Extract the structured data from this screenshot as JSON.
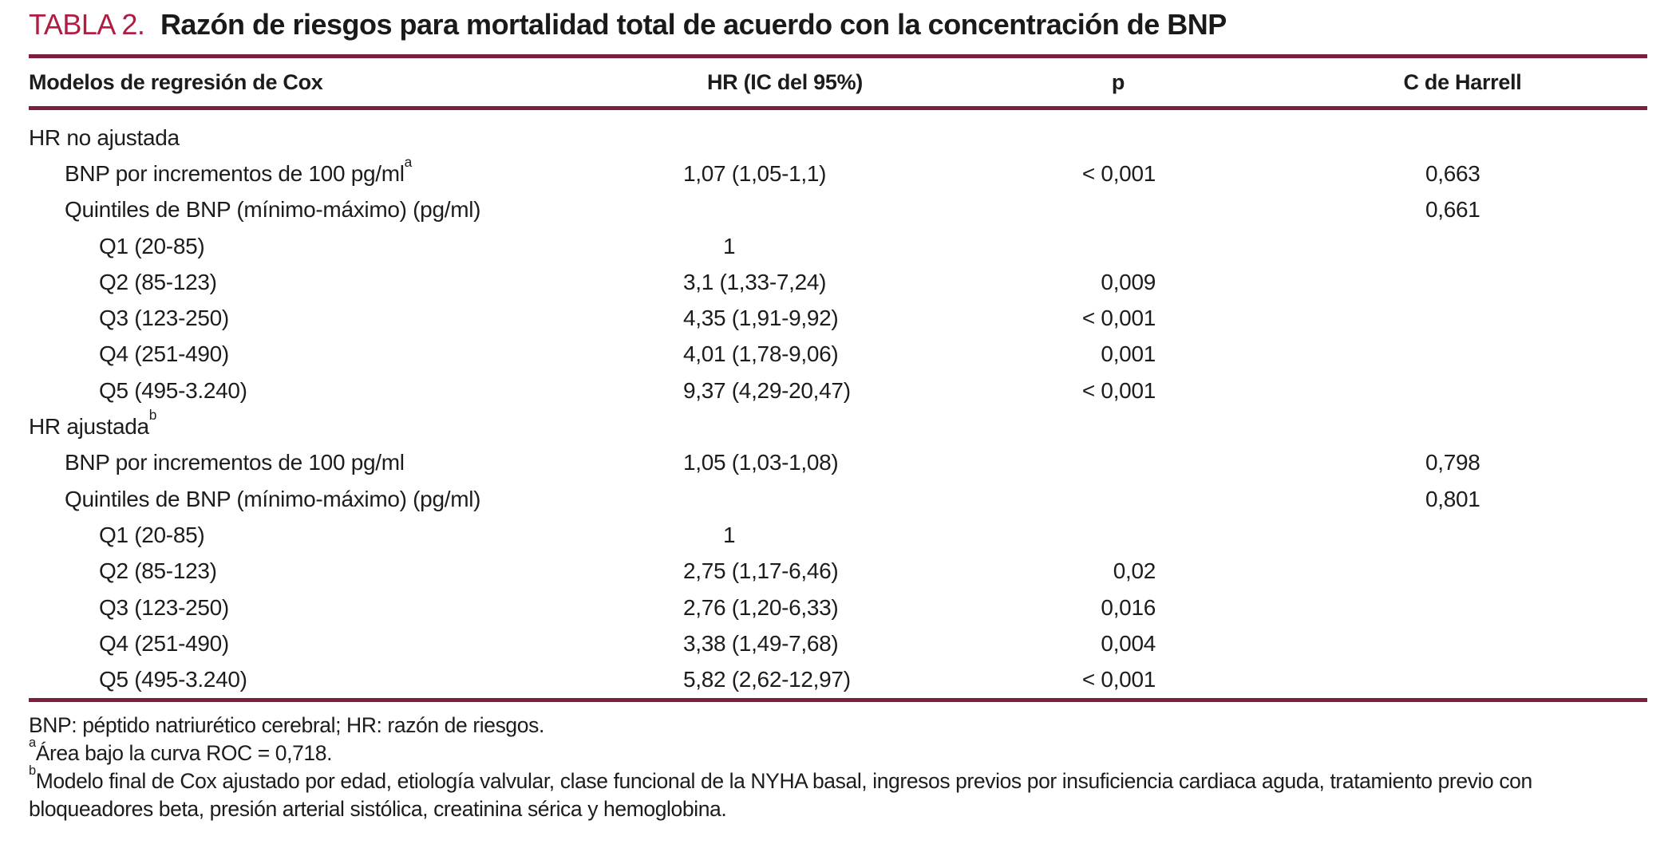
{
  "title": {
    "label": "TABLA 2.",
    "text": "Razón de riesgos para mortalidad total de acuerdo con la concentración de BNP"
  },
  "columns": {
    "model": "Modelos de regresión de Cox",
    "hr": "HR (IC del 95%)",
    "p": "p",
    "c": "C de Harrell"
  },
  "rows": [
    {
      "label": "HR no ajustada"
    },
    {
      "label": "BNP por incrementos de 100 pg/ml",
      "sup": "a",
      "hr": "1,07 (1,05-1,1)",
      "p": "< 0,001",
      "c": "0,663"
    },
    {
      "label": "Quintiles de BNP (mínimo-máximo) (pg/ml)",
      "c": "0,661"
    },
    {
      "label": "Q1 (20-85)",
      "hr": "1"
    },
    {
      "label": "Q2 (85-123)",
      "hr": "3,1 (1,33-7,24)",
      "p": "0,009"
    },
    {
      "label": "Q3 (123-250)",
      "hr": "4,35 (1,91-9,92)",
      "p": "< 0,001"
    },
    {
      "label": "Q4 (251-490)",
      "hr": "4,01 (1,78-9,06)",
      "p": "0,001"
    },
    {
      "label": "Q5 (495-3.240)",
      "hr": "9,37 (4,29-20,47)",
      "p": "< 0,001"
    },
    {
      "label": "HR ajustada",
      "sup": "b"
    },
    {
      "label": "BNP por incrementos de 100 pg/ml",
      "hr": "1,05 (1,03-1,08)",
      "c": "0,798"
    },
    {
      "label": "Quintiles de BNP (mínimo-máximo) (pg/ml)",
      "c": "0,801"
    },
    {
      "label": "Q1 (20-85)",
      "hr": "1"
    },
    {
      "label": "Q2 (85-123)",
      "hr": "2,75 (1,17-6,46)",
      "p": "0,02"
    },
    {
      "label": "Q3 (123-250)",
      "hr": "2,76 (1,20-6,33)",
      "p": "0,016"
    },
    {
      "label": "Q4 (251-490)",
      "hr": "3,38 (1,49-7,68)",
      "p": "0,004"
    },
    {
      "label": "Q5 (495-3.240)",
      "hr": "5,82 (2,62-12,97)",
      "p": "< 0,001"
    }
  ],
  "footnotes": {
    "abbr": "BNP: péptido natriurético cerebral; HR: razón de riesgos.",
    "a_sup": "a",
    "a_text": "Área bajo la curva ROC = 0,718.",
    "b_sup": "b",
    "b_text": "Modelo final de Cox ajustado por edad, etiología valvular, clase funcional de la NYHA basal, ingresos previos por insuficiencia cardiaca aguda, tratamiento previo con bloqueadores beta, presión arterial sistólica, creatinina sérica y hemoglobina."
  },
  "colors": {
    "accent": "#b01d41",
    "rule": "#7e1e3d",
    "text": "#1c1c1c"
  }
}
